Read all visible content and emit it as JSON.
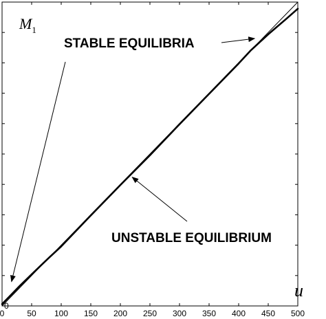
{
  "chart_data": {
    "type": "line",
    "xlabel": "u",
    "ylabel": "M",
    "ylabel_subscript": "1",
    "xlim": [
      0,
      500
    ],
    "ylim": [
      0,
      500
    ],
    "xticks": [
      0,
      50,
      100,
      150,
      200,
      250,
      300,
      350,
      400,
      450,
      500
    ],
    "yticks": [
      0,
      50,
      100,
      150,
      200,
      250,
      300,
      350,
      400,
      450,
      500
    ],
    "grid": false,
    "colors": {
      "line": "#000000",
      "background": "#ffffff"
    },
    "series": [
      {
        "style": "thick",
        "x": [
          0,
          10,
          20,
          30,
          50,
          80,
          100,
          150,
          200,
          250,
          300,
          350,
          400,
          420,
          450,
          480,
          500
        ],
        "y": [
          3,
          13,
          23,
          33,
          52,
          80,
          98,
          149,
          199,
          248,
          299,
          349,
          399,
          420,
          447,
          472,
          489
        ]
      },
      {
        "style": "thin",
        "x": [
          0,
          500
        ],
        "y": [
          0,
          500
        ]
      }
    ],
    "annotations": [
      {
        "text": "STABLE EQUILIBRIA",
        "arrows_to": [
          [
            16,
            40
          ],
          [
            427,
            440
          ]
        ]
      },
      {
        "text": "UNSTABLE EQUILIBRIUM",
        "arrows_to": [
          [
            220,
            212
          ]
        ]
      }
    ]
  }
}
